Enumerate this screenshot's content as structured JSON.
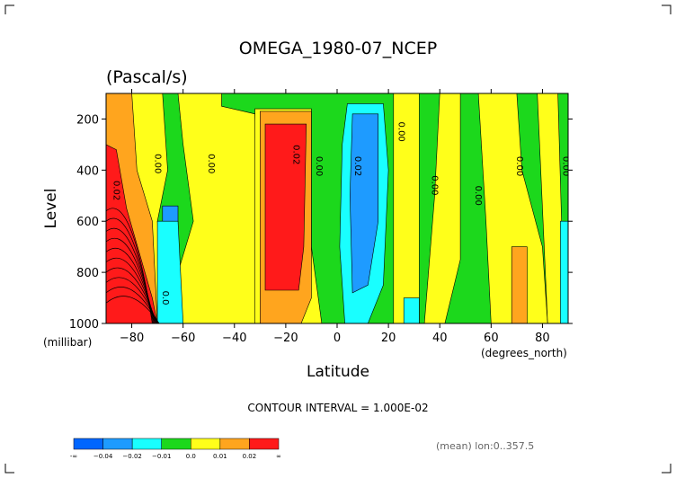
{
  "chart_data": {
    "type": "heatmap",
    "title": "OMEGA_1980-07_NCEP",
    "subtitle": "(Pascal/s)",
    "xlabel": "Latitude",
    "xunit": "(degrees_north)",
    "ylabel": "Level",
    "yunit": "(millibar)",
    "xlim": [
      -90,
      90
    ],
    "ylim": [
      1000,
      100
    ],
    "x_ticks": [
      -80,
      -60,
      -40,
      -20,
      0,
      20,
      40,
      60,
      80
    ],
    "y_ticks": [
      200,
      400,
      600,
      800,
      1000
    ],
    "contour_interval_text": "CONTOUR INTERVAL = 1.000E-02",
    "averaging_text": "(mean) lon:0..357.5",
    "levels": [
      -0.04,
      -0.02,
      -0.01,
      0.0,
      0.01,
      0.02
    ],
    "colorbar": {
      "colors": [
        "#0066ff",
        "#1e9bff",
        "#19ffff",
        "#1cd81c",
        "#ffff1a",
        "#ffa51e",
        "#ff1a1a"
      ],
      "tick_labels": [
        "-∞",
        "−0.04",
        "−0.02",
        "−0.01",
        "0.0",
        "0.01",
        "0.02",
        "∞"
      ]
    },
    "contour_labels": [
      {
        "text": "0.02",
        "lat": -87,
        "lev": 480
      },
      {
        "text": "0.00",
        "lat": -71,
        "lev": 375
      },
      {
        "text": "0.00",
        "lat": -50,
        "lev": 375
      },
      {
        "text": "0.02",
        "lat": -17,
        "lev": 340
      },
      {
        "text": "0.00",
        "lat": -8,
        "lev": 385
      },
      {
        "text": "0.02",
        "lat": 7,
        "lev": 385
      },
      {
        "text": "0.00",
        "lat": 24,
        "lev": 250
      },
      {
        "text": "0.00",
        "lat": 37,
        "lev": 460
      },
      {
        "text": "0.00",
        "lat": 54,
        "lev": 500
      },
      {
        "text": "0.00",
        "lat": 70,
        "lev": 385
      },
      {
        "text": "0.00",
        "lat": 88,
        "lev": 385
      },
      {
        "text": "0.0",
        "lat": -68,
        "lev": 900
      }
    ]
  }
}
